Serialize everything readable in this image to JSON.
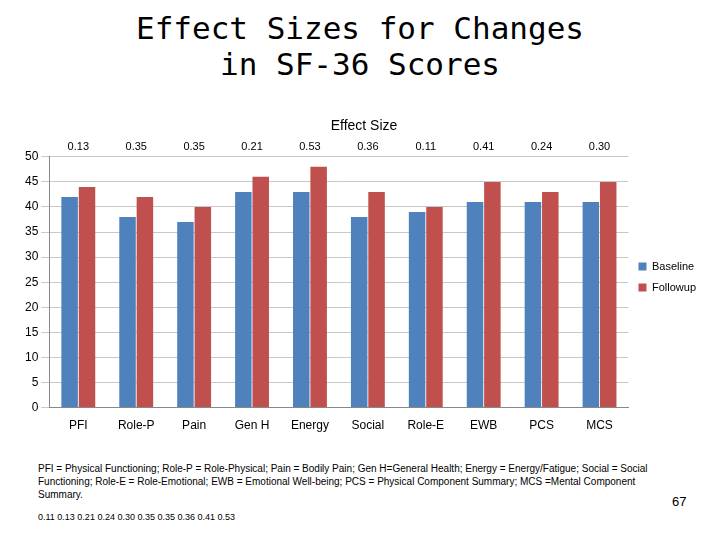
{
  "page": {
    "title_lines": [
      "Effect Sizes for Changes",
      "in SF-36 Scores"
    ],
    "footnote": "PFI = Physical Functioning; Role-P = Role-Physical; Pain = Bodily Pain; Gen H=General Health; Energy = Energy/Fatigue; Social = Social Functioning; Role-E = Role-Emotional; EWB = Emotional Well-being; PCS = Physical Component Summary; MCS =Mental Component Summary.",
    "effect_size_list": "0.11 0.13 0.21 0.24 0.30 0.35 0.35 0.36 0.41 0.53",
    "page_number": "67"
  },
  "chart_data": {
    "type": "bar",
    "title": "Effect Size",
    "categories": [
      "PFI",
      "Role-P",
      "Pain",
      "Gen H",
      "Energy",
      "Social",
      "Role-E",
      "EWB",
      "PCS",
      "MCS"
    ],
    "effect_sizes": [
      0.13,
      0.35,
      0.35,
      0.21,
      0.53,
      0.36,
      0.11,
      0.41,
      0.24,
      0.3
    ],
    "effect_size_labels": [
      "0.13",
      "0.35",
      "0.35",
      "0.21",
      "0.53",
      "0.36",
      "0.11",
      "0.41",
      "0.24",
      "0.30"
    ],
    "series": [
      {
        "name": "Baseline",
        "color": "#4f81bd",
        "values": [
          42,
          38,
          37,
          43,
          43,
          38,
          39,
          41,
          41,
          41
        ]
      },
      {
        "name": "Followup",
        "color": "#c0504d",
        "values": [
          44,
          42,
          40,
          46,
          48,
          43,
          40,
          45,
          43,
          45
        ]
      }
    ],
    "ylim": [
      0,
      50
    ],
    "yticks": [
      0,
      5,
      10,
      15,
      20,
      25,
      30,
      35,
      40,
      45,
      50
    ],
    "grid": true,
    "legend": "right"
  }
}
